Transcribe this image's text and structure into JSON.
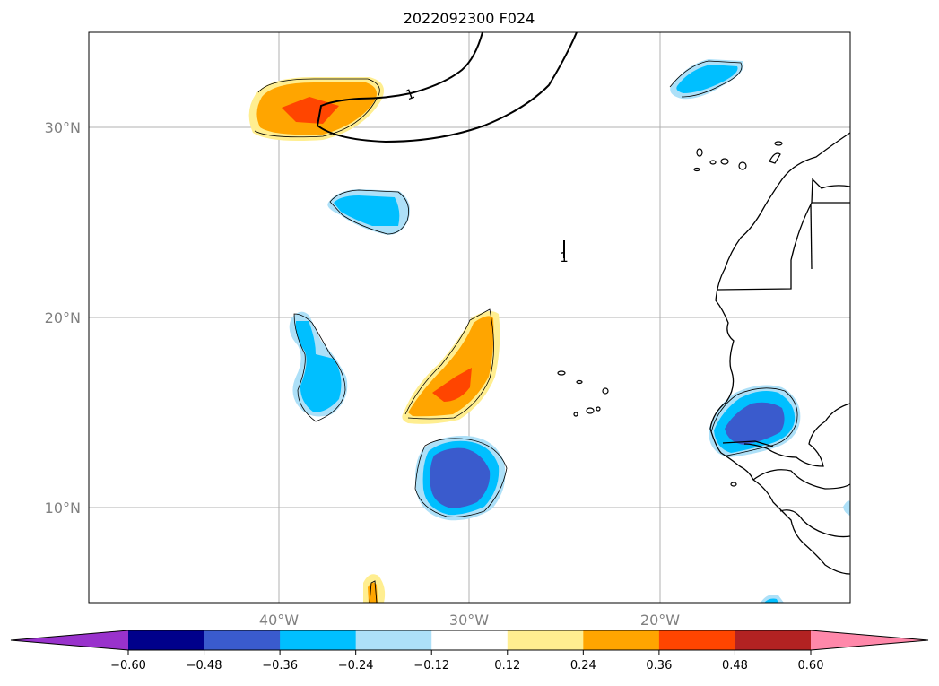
{
  "title": "2022092300 F024",
  "map": {
    "lon_labels": [
      "40°W",
      "30°W",
      "20°W"
    ],
    "lat_labels": [
      "30°N",
      "20°N",
      "10°N"
    ],
    "contour_label": "1"
  },
  "colorbar": {
    "colors": [
      "#9932CC",
      "#00008B",
      "#3A5BCD",
      "#00BFFF",
      "#ADE0F8",
      "#FFFFFF",
      "#FFEE90",
      "#FFA500",
      "#FF4500",
      "#B22222",
      "#FF88AA"
    ],
    "tick_labels": [
      "−0.60",
      "−0.48",
      "−0.36",
      "−0.24",
      "−0.12",
      "0.12",
      "0.24",
      "0.36",
      "0.48",
      "0.60"
    ]
  },
  "field_colors": {
    "neg_weak": "#ADE0F8",
    "neg_mid": "#00BFFF",
    "neg_strong": "#3A5BCD",
    "pos_weak": "#FFEE90",
    "pos_mid": "#FFA500",
    "pos_strong": "#FF4500"
  }
}
